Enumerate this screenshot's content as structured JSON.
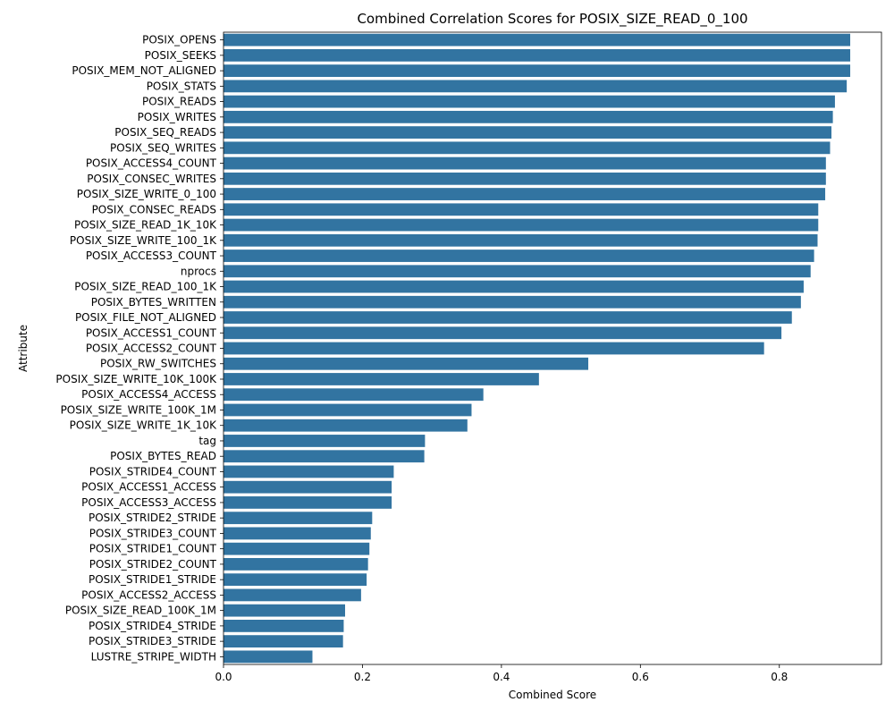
{
  "chart_data": {
    "type": "bar",
    "orientation": "horizontal",
    "title": "Combined Correlation Scores for POSIX_SIZE_READ_0_100",
    "xlabel": "Combined Score",
    "ylabel": "Attribute",
    "xlim": [
      0,
      0.947
    ],
    "xticks": [
      0.0,
      0.2,
      0.4,
      0.6,
      0.8
    ],
    "xtick_labels": [
      "0.0",
      "0.2",
      "0.4",
      "0.6",
      "0.8"
    ],
    "grid": false,
    "bar_color": "#3274a1",
    "categories": [
      "POSIX_OPENS",
      "POSIX_SEEKS",
      "POSIX_MEM_NOT_ALIGNED",
      "POSIX_STATS",
      "POSIX_READS",
      "POSIX_WRITES",
      "POSIX_SEQ_READS",
      "POSIX_SEQ_WRITES",
      "POSIX_ACCESS4_COUNT",
      "POSIX_CONSEC_WRITES",
      "POSIX_SIZE_WRITE_0_100",
      "POSIX_CONSEC_READS",
      "POSIX_SIZE_READ_1K_10K",
      "POSIX_SIZE_WRITE_100_1K",
      "POSIX_ACCESS3_COUNT",
      "nprocs",
      "POSIX_SIZE_READ_100_1K",
      "POSIX_BYTES_WRITTEN",
      "POSIX_FILE_NOT_ALIGNED",
      "POSIX_ACCESS1_COUNT",
      "POSIX_ACCESS2_COUNT",
      "POSIX_RW_SWITCHES",
      "POSIX_SIZE_WRITE_10K_100K",
      "POSIX_ACCESS4_ACCESS",
      "POSIX_SIZE_WRITE_100K_1M",
      "POSIX_SIZE_WRITE_1K_10K",
      "tag",
      "POSIX_BYTES_READ",
      "POSIX_STRIDE4_COUNT",
      "POSIX_ACCESS1_ACCESS",
      "POSIX_ACCESS3_ACCESS",
      "POSIX_STRIDE2_STRIDE",
      "POSIX_STRIDE3_COUNT",
      "POSIX_STRIDE1_COUNT",
      "POSIX_STRIDE2_COUNT",
      "POSIX_STRIDE1_STRIDE",
      "POSIX_ACCESS2_ACCESS",
      "POSIX_SIZE_READ_100K_1M",
      "POSIX_STRIDE4_STRIDE",
      "POSIX_STRIDE3_STRIDE",
      "LUSTRE_STRIPE_WIDTH"
    ],
    "values": [
      0.902,
      0.902,
      0.902,
      0.897,
      0.88,
      0.877,
      0.875,
      0.873,
      0.867,
      0.867,
      0.866,
      0.856,
      0.856,
      0.855,
      0.85,
      0.845,
      0.835,
      0.831,
      0.818,
      0.803,
      0.778,
      0.525,
      0.454,
      0.374,
      0.357,
      0.351,
      0.29,
      0.289,
      0.245,
      0.242,
      0.242,
      0.214,
      0.212,
      0.21,
      0.208,
      0.206,
      0.198,
      0.175,
      0.173,
      0.172,
      0.128
    ]
  }
}
